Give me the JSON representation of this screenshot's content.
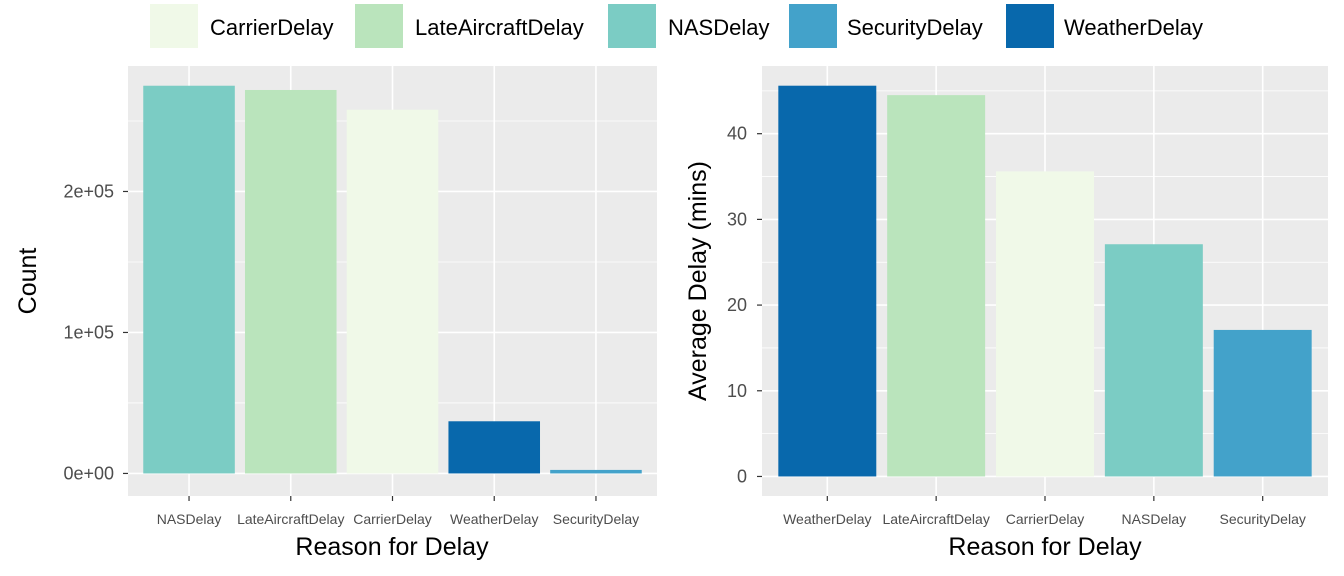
{
  "legend": {
    "placement": "top",
    "entries": [
      {
        "label": "CarrierDelay",
        "color": "#F0F9E8"
      },
      {
        "label": "LateAircraftDelay",
        "color": "#BAE4BC"
      },
      {
        "label": "NASDelay",
        "color": "#7BCCC4"
      },
      {
        "label": "SecurityDelay",
        "color": "#43A2CA"
      },
      {
        "label": "WeatherDelay",
        "color": "#0868AC"
      }
    ]
  },
  "colors": {
    "panel_background": "#EBEBEB",
    "grid": "#FFFFFF",
    "axis_text": "#4D4D4D",
    "title_text": "#000000"
  },
  "chart_data": [
    {
      "type": "bar",
      "categories": [
        "NASDelay",
        "LateAircraftDelay",
        "CarrierDelay",
        "WeatherDelay",
        "SecurityDelay"
      ],
      "values": [
        275000,
        272000,
        258000,
        37000,
        2500
      ],
      "xlabel": "Reason for Delay",
      "ylabel": "Count",
      "ylim": [
        -16000,
        289000
      ],
      "yticks": [
        0,
        100000,
        200000
      ],
      "ytick_labels": [
        "0e+00",
        "1e+05",
        "2e+05"
      ],
      "grid": true
    },
    {
      "type": "bar",
      "categories": [
        "WeatherDelay",
        "LateAircraftDelay",
        "CarrierDelay",
        "NASDelay",
        "SecurityDelay"
      ],
      "values": [
        45.6,
        44.5,
        35.6,
        27.1,
        17.1
      ],
      "xlabel": "Reason for Delay",
      "ylabel": "Average Delay (mins)",
      "ylim": [
        -2.28,
        47.9
      ],
      "yticks": [
        0,
        10,
        20,
        30,
        40
      ],
      "ytick_labels": [
        "0",
        "10",
        "20",
        "30",
        "40"
      ],
      "grid": true
    }
  ]
}
